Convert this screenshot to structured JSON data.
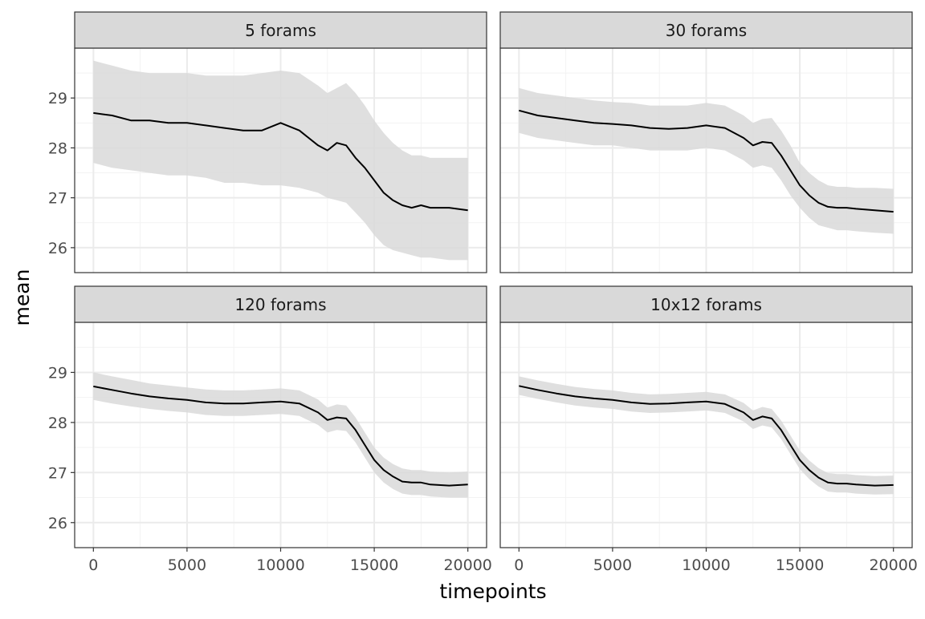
{
  "chart_data": {
    "type": "line",
    "xlabel": "timepoints",
    "ylabel": "mean",
    "xlim": [
      -1000,
      21000
    ],
    "ylim": [
      25.5,
      30.0
    ],
    "x_ticks": [
      0,
      5000,
      10000,
      15000,
      20000
    ],
    "y_ticks": [
      26,
      27,
      28,
      29
    ],
    "grid": true,
    "band_description": "shaded ribbon = lower to upper",
    "colors": {
      "line": "#000000",
      "ribbon": "#d9d9d9",
      "strip_fill": "#d9d9d9",
      "panel_border": "#333333",
      "grid_major": "#ebebeb"
    },
    "panels": [
      {
        "title": "5 forams",
        "x": [
          0,
          1000,
          2000,
          3000,
          4000,
          5000,
          6000,
          7000,
          8000,
          9000,
          10000,
          11000,
          12000,
          12500,
          13000,
          13500,
          14000,
          14500,
          15000,
          15500,
          16000,
          16500,
          17000,
          17500,
          18000,
          19000,
          20000
        ],
        "mean": [
          28.7,
          28.65,
          28.55,
          28.55,
          28.5,
          28.5,
          28.45,
          28.4,
          28.35,
          28.35,
          28.5,
          28.35,
          28.05,
          27.95,
          28.1,
          28.05,
          27.8,
          27.6,
          27.35,
          27.1,
          26.95,
          26.85,
          26.8,
          26.85,
          26.8,
          26.8,
          26.75
        ],
        "lower": [
          27.7,
          27.6,
          27.55,
          27.5,
          27.45,
          27.45,
          27.4,
          27.3,
          27.3,
          27.25,
          27.25,
          27.2,
          27.1,
          27.0,
          26.95,
          26.9,
          26.7,
          26.5,
          26.25,
          26.05,
          25.95,
          25.9,
          25.85,
          25.8,
          25.8,
          25.75,
          25.75
        ],
        "upper": [
          29.75,
          29.65,
          29.55,
          29.5,
          29.5,
          29.5,
          29.45,
          29.45,
          29.45,
          29.5,
          29.55,
          29.5,
          29.25,
          29.1,
          29.2,
          29.3,
          29.1,
          28.85,
          28.55,
          28.3,
          28.1,
          27.95,
          27.85,
          27.85,
          27.8,
          27.8,
          27.8
        ]
      },
      {
        "title": "30 forams",
        "x": [
          0,
          1000,
          2000,
          3000,
          4000,
          5000,
          6000,
          7000,
          8000,
          9000,
          10000,
          11000,
          12000,
          12500,
          13000,
          13500,
          14000,
          14500,
          15000,
          15500,
          16000,
          16500,
          17000,
          17500,
          18000,
          19000,
          20000
        ],
        "mean": [
          28.75,
          28.65,
          28.6,
          28.55,
          28.5,
          28.48,
          28.45,
          28.4,
          28.38,
          28.4,
          28.45,
          28.4,
          28.2,
          28.05,
          28.12,
          28.1,
          27.85,
          27.55,
          27.25,
          27.05,
          26.9,
          26.82,
          26.8,
          26.8,
          26.78,
          26.75,
          26.72
        ],
        "lower": [
          28.3,
          28.2,
          28.15,
          28.1,
          28.05,
          28.05,
          28.0,
          27.95,
          27.95,
          27.95,
          28.0,
          27.95,
          27.75,
          27.6,
          27.65,
          27.6,
          27.35,
          27.05,
          26.8,
          26.6,
          26.45,
          26.4,
          26.35,
          26.35,
          26.33,
          26.3,
          26.28
        ],
        "upper": [
          29.2,
          29.1,
          29.05,
          29.0,
          28.95,
          28.92,
          28.9,
          28.85,
          28.85,
          28.85,
          28.9,
          28.85,
          28.65,
          28.5,
          28.58,
          28.6,
          28.35,
          28.05,
          27.7,
          27.5,
          27.35,
          27.25,
          27.22,
          27.22,
          27.2,
          27.2,
          27.18
        ]
      },
      {
        "title": "120 forams",
        "x": [
          0,
          1000,
          2000,
          3000,
          4000,
          5000,
          6000,
          7000,
          8000,
          9000,
          10000,
          11000,
          12000,
          12500,
          13000,
          13500,
          14000,
          14500,
          15000,
          15500,
          16000,
          16500,
          17000,
          17500,
          18000,
          19000,
          20000
        ],
        "mean": [
          28.72,
          28.65,
          28.58,
          28.52,
          28.48,
          28.45,
          28.4,
          28.38,
          28.38,
          28.4,
          28.42,
          28.38,
          28.2,
          28.05,
          28.1,
          28.08,
          27.85,
          27.55,
          27.25,
          27.05,
          26.92,
          26.82,
          26.8,
          26.8,
          26.76,
          26.74,
          26.76
        ],
        "lower": [
          28.45,
          28.38,
          28.32,
          28.27,
          28.23,
          28.2,
          28.15,
          28.13,
          28.13,
          28.15,
          28.17,
          28.13,
          27.95,
          27.8,
          27.85,
          27.83,
          27.6,
          27.3,
          27.0,
          26.8,
          26.67,
          26.58,
          26.55,
          26.55,
          26.52,
          26.5,
          26.5
        ],
        "upper": [
          29.0,
          28.92,
          28.85,
          28.78,
          28.74,
          28.7,
          28.66,
          28.64,
          28.64,
          28.66,
          28.68,
          28.64,
          28.46,
          28.3,
          28.36,
          28.34,
          28.1,
          27.8,
          27.5,
          27.3,
          27.17,
          27.08,
          27.05,
          27.05,
          27.02,
          27.0,
          27.02
        ]
      },
      {
        "title": "10x12 forams",
        "x": [
          0,
          1000,
          2000,
          3000,
          4000,
          5000,
          6000,
          7000,
          8000,
          9000,
          10000,
          11000,
          12000,
          12500,
          13000,
          13500,
          14000,
          14500,
          15000,
          15500,
          16000,
          16500,
          17000,
          17500,
          18000,
          19000,
          20000
        ],
        "mean": [
          28.73,
          28.65,
          28.58,
          28.52,
          28.48,
          28.45,
          28.4,
          28.37,
          28.38,
          28.4,
          28.42,
          28.37,
          28.2,
          28.05,
          28.12,
          28.08,
          27.85,
          27.55,
          27.25,
          27.05,
          26.9,
          26.8,
          26.78,
          26.78,
          26.76,
          26.74,
          26.75
        ],
        "lower": [
          28.55,
          28.47,
          28.4,
          28.34,
          28.3,
          28.27,
          28.22,
          28.19,
          28.2,
          28.22,
          28.24,
          28.19,
          28.02,
          27.87,
          27.94,
          27.9,
          27.67,
          27.37,
          27.07,
          26.87,
          26.72,
          26.62,
          26.6,
          26.6,
          26.58,
          26.56,
          26.57
        ],
        "upper": [
          28.92,
          28.84,
          28.77,
          28.71,
          28.67,
          28.64,
          28.59,
          28.56,
          28.57,
          28.59,
          28.61,
          28.56,
          28.39,
          28.24,
          28.31,
          28.27,
          28.04,
          27.74,
          27.44,
          27.24,
          27.09,
          26.99,
          26.97,
          26.97,
          26.95,
          26.93,
          26.94
        ]
      }
    ]
  }
}
